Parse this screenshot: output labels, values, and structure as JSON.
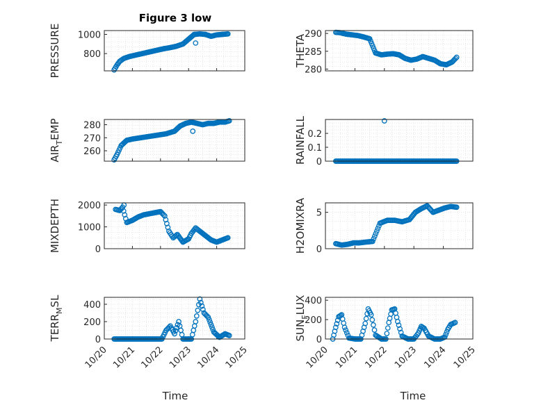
{
  "figure": {
    "title": "Figure 3 low",
    "xlabel": "Time",
    "marker_color": "#0072BD"
  },
  "chart_data": [
    {
      "type": "scatter",
      "ylabel": "PRESSURE",
      "ylabel_sub": "",
      "xlim": [
        20,
        25
      ],
      "xticks": [],
      "ylim": [
        620,
        1040
      ],
      "yticks": [
        800,
        1000
      ],
      "series": [
        {
          "x": [
            20.35,
            20.45,
            20.55,
            20.7,
            20.9,
            21.2,
            21.5,
            21.8,
            22.1,
            22.3,
            22.55,
            22.8,
            23.0,
            23.2,
            23.4,
            23.6,
            23.8,
            24.0,
            24.2,
            24.4
          ],
          "y": [
            630,
            680,
            720,
            750,
            770,
            790,
            810,
            830,
            850,
            860,
            875,
            900,
            950,
            1000,
            1005,
            1000,
            980,
            995,
            1000,
            1005
          ]
        }
      ],
      "outliers": [
        {
          "x": 23.25,
          "y": 910
        }
      ]
    },
    {
      "type": "scatter",
      "ylabel": "THETA",
      "ylabel_sub": "",
      "xlim": [
        20,
        25
      ],
      "xticks": [],
      "ylim": [
        279.5,
        290.8
      ],
      "yticks": [
        280,
        285,
        290
      ],
      "series": [
        {
          "x": [
            20.35,
            20.5,
            20.7,
            20.9,
            21.1,
            21.3,
            21.5,
            21.7,
            21.9,
            22.1,
            22.3,
            22.5,
            22.7,
            22.9,
            23.1,
            23.3,
            23.5,
            23.7,
            23.9,
            24.1,
            24.3,
            24.45
          ],
          "y": [
            290.3,
            290.2,
            289.8,
            289.6,
            289.4,
            289.0,
            288.5,
            284.5,
            284.0,
            284.2,
            284.3,
            284.0,
            283.0,
            282.5,
            282.8,
            283.5,
            283.0,
            282.5,
            281.5,
            281.2,
            282.0,
            283.3
          ]
        }
      ],
      "outliers": []
    },
    {
      "type": "scatter",
      "ylabel": "AIR",
      "ylabel_sub": "T",
      "ylabel_rest": "EMP",
      "xlim": [
        20,
        25
      ],
      "xticks": [],
      "ylim": [
        252,
        284
      ],
      "yticks": [
        260,
        270,
        280
      ],
      "series": [
        {
          "x": [
            20.35,
            20.45,
            20.6,
            20.8,
            21.0,
            21.3,
            21.6,
            21.9,
            22.2,
            22.5,
            22.7,
            22.9,
            23.1,
            23.3,
            23.5,
            23.7,
            23.9,
            24.1,
            24.3,
            24.45
          ],
          "y": [
            253,
            257,
            264,
            268,
            269,
            270,
            271,
            272,
            273,
            275,
            279,
            281,
            282,
            281,
            280,
            281,
            281,
            282,
            282,
            283
          ]
        }
      ],
      "outliers": [
        {
          "x": 23.15,
          "y": 275
        }
      ]
    },
    {
      "type": "scatter",
      "ylabel": "RAINFALL",
      "ylabel_sub": "",
      "xlim": [
        20,
        25
      ],
      "xticks": [],
      "ylim": [
        0,
        0.3
      ],
      "yticks": [
        0,
        0.1,
        0.2
      ],
      "series": [
        {
          "x": [
            20.35,
            20.55,
            20.75,
            20.95,
            21.15,
            21.35,
            21.55,
            21.75,
            21.95,
            22.15,
            22.35,
            22.55,
            22.75,
            22.95,
            23.15,
            23.35,
            23.55,
            23.75,
            23.95,
            24.15,
            24.35,
            24.45
          ],
          "y": [
            0,
            0,
            0,
            0,
            0,
            0,
            0,
            0,
            0,
            0,
            0,
            0,
            0,
            0,
            0,
            0,
            0,
            0,
            0,
            0,
            0,
            0
          ]
        }
      ],
      "outliers": [
        {
          "x": 22.0,
          "y": 0.29
        }
      ]
    },
    {
      "type": "scatter",
      "ylabel": "MIXDEPTH",
      "ylabel_sub": "",
      "xlim": [
        20,
        25
      ],
      "xticks": [],
      "ylim": [
        0,
        2100
      ],
      "yticks": [
        0,
        1000,
        2000
      ],
      "series": [
        {
          "x": [
            20.4,
            20.55,
            20.65,
            20.8,
            21.0,
            21.2,
            21.4,
            21.6,
            21.8,
            22.0,
            22.15,
            22.3,
            22.45,
            22.6,
            22.8,
            23.0,
            23.1,
            23.25,
            23.4,
            23.6,
            23.8,
            24.0,
            24.2,
            24.4
          ],
          "y": [
            1800,
            1750,
            1900,
            1200,
            1300,
            1450,
            1550,
            1600,
            1650,
            1700,
            1500,
            800,
            500,
            650,
            300,
            450,
            700,
            950,
            800,
            600,
            400,
            300,
            400,
            500
          ]
        }
      ],
      "outliers": [
        {
          "x": 20.7,
          "y": 2000
        }
      ]
    },
    {
      "type": "scatter",
      "ylabel": "H2OMIXRA",
      "ylabel_sub": "",
      "xlim": [
        20,
        25
      ],
      "xticks": [],
      "ylim": [
        0,
        6.3
      ],
      "yticks": [
        0,
        5
      ],
      "series": [
        {
          "x": [
            20.35,
            20.55,
            20.75,
            20.95,
            21.15,
            21.35,
            21.6,
            21.85,
            22.1,
            22.35,
            22.6,
            22.85,
            23.05,
            23.25,
            23.45,
            23.65,
            23.85,
            24.05,
            24.25,
            24.45
          ],
          "y": [
            0.7,
            0.5,
            0.6,
            0.8,
            0.8,
            0.9,
            1.0,
            3.5,
            3.9,
            3.9,
            3.7,
            4.0,
            5.0,
            5.5,
            5.9,
            5.0,
            5.3,
            5.6,
            5.8,
            5.7
          ]
        }
      ],
      "outliers": []
    },
    {
      "type": "scatter",
      "ylabel": "TERR",
      "ylabel_sub": "M",
      "ylabel_rest": "SL",
      "xlim": [
        20,
        25
      ],
      "xticks": [
        "10/20",
        "10/21",
        "10/22",
        "10/23",
        "10/24",
        "10/25"
      ],
      "ylim": [
        0,
        480
      ],
      "yticks": [
        0,
        200,
        400
      ],
      "series": [
        {
          "x": [
            20.35,
            20.6,
            20.9,
            21.2,
            21.5,
            21.8,
            22.05,
            22.2,
            22.35,
            22.5,
            22.65,
            22.8,
            22.95,
            23.1,
            23.25,
            23.4,
            23.55,
            23.7,
            23.9,
            24.1,
            24.3,
            24.45
          ],
          "y": [
            0,
            0,
            0,
            0,
            0,
            0,
            0,
            100,
            150,
            60,
            200,
            0,
            0,
            0,
            200,
            460,
            300,
            250,
            80,
            20,
            60,
            40
          ]
        }
      ],
      "outliers": []
    },
    {
      "type": "scatter",
      "ylabel": "SUN",
      "ylabel_sub": "F",
      "ylabel_rest": "LUX",
      "xlim": [
        20,
        25
      ],
      "xticks": [
        "10/20",
        "10/21",
        "10/22",
        "10/23",
        "10/24",
        "10/25"
      ],
      "ylim": [
        0,
        430
      ],
      "yticks": [
        0,
        200,
        400
      ],
      "series": [
        {
          "x": [
            20.25,
            20.35,
            20.45,
            20.55,
            20.65,
            20.8,
            21.0,
            21.2,
            21.35,
            21.45,
            21.55,
            21.7,
            21.9,
            22.05,
            22.15,
            22.25,
            22.35,
            22.45,
            22.6,
            22.8,
            23.0,
            23.15,
            23.25,
            23.35,
            23.5,
            23.7,
            23.9,
            24.05,
            24.15,
            24.25,
            24.4
          ],
          "y": [
            0,
            120,
            230,
            250,
            120,
            10,
            0,
            0,
            160,
            310,
            250,
            40,
            0,
            0,
            170,
            300,
            310,
            180,
            30,
            0,
            0,
            60,
            130,
            110,
            30,
            0,
            0,
            20,
            100,
            150,
            170
          ]
        }
      ],
      "outliers": []
    }
  ]
}
